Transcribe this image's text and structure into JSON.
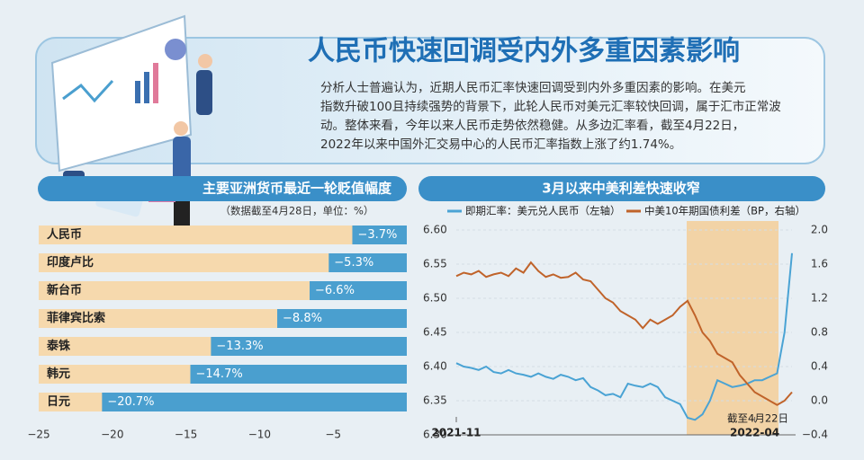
{
  "header": {
    "title": "人民币快速回调受内外多重因素影响",
    "lines": [
      "分析人士普遍认为，近期人民币汇率快速回调受到内外多重因素的影响。在美元",
      "指数升破100且持续强势的背景下，此轮人民币对美元汇率较快回调，属于汇市正常波",
      "动。整体来看，今年以来人民币走势依然稳健。从多边汇率看，截至4月22日，",
      "2022年以来中国外汇交易中心的人民币汇率指数上涨了约1.74%。"
    ]
  },
  "chart_data": [
    {
      "type": "hbar",
      "title": "主要亚洲货币最近一轮贬值幅度",
      "subtitle": "（数据截至4月28日，单位：%）",
      "categories": [
        "人民币",
        "印度卢比",
        "新台币",
        "菲律宾比索",
        "泰铢",
        "韩元",
        "日元"
      ],
      "values": [
        -3.7,
        -5.3,
        -6.6,
        -8.8,
        -13.3,
        -14.7,
        -20.7
      ],
      "value_labels": [
        "−3.7%",
        "−5.3%",
        "−6.6%",
        "−8.8%",
        "−13.3%",
        "−14.7%",
        "−20.7%"
      ],
      "color": "#4a9fcf",
      "track_color": "#f6d9ad",
      "xlim": [
        -25,
        0
      ],
      "xticks": [
        {
          "value": -25,
          "label": "−25"
        },
        {
          "value": -20,
          "label": "−20"
        },
        {
          "value": -15,
          "label": "−15"
        },
        {
          "value": -10,
          "label": "−10"
        },
        {
          "value": -5,
          "label": "−5"
        }
      ]
    },
    {
      "type": "line",
      "title": "3月以来中美利差快速收窄",
      "annotation": "截至4月22日",
      "categories": [
        "2021-11",
        null,
        null,
        null,
        null,
        null,
        null,
        null,
        null,
        null,
        null,
        null,
        null,
        null,
        null,
        null,
        null,
        null,
        null,
        null,
        null,
        null,
        null,
        null,
        null,
        null,
        null,
        null,
        null,
        null,
        null,
        null,
        null,
        null,
        null,
        null,
        null,
        null,
        null,
        null,
        "2022-04",
        null,
        null,
        null,
        null,
        null
      ],
      "series": [
        {
          "name": "即期汇率：美元兑人民币（左轴）",
          "color": "#4aa3d4",
          "values": [
            6.405,
            6.4,
            6.398,
            6.395,
            6.4,
            6.392,
            6.39,
            6.395,
            6.39,
            6.388,
            6.385,
            6.39,
            6.385,
            6.382,
            6.388,
            6.385,
            6.38,
            6.383,
            6.37,
            6.365,
            6.358,
            6.36,
            6.355,
            6.375,
            6.372,
            6.37,
            6.375,
            6.37,
            6.355,
            6.35,
            6.345,
            6.325,
            6.322,
            6.33,
            6.35,
            6.38,
            6.375,
            6.37,
            6.372,
            6.375,
            6.38,
            6.38,
            6.385,
            6.39,
            6.45,
            6.566
          ]
        },
        {
          "name": "中美10年期国债利差（BP，右轴）",
          "color": "#c0632a",
          "axis": "y2",
          "values": [
            1.46,
            1.5,
            1.48,
            1.52,
            1.45,
            1.48,
            1.5,
            1.46,
            1.55,
            1.5,
            1.62,
            1.52,
            1.45,
            1.48,
            1.44,
            1.45,
            1.5,
            1.42,
            1.4,
            1.3,
            1.2,
            1.15,
            1.05,
            1.0,
            0.95,
            0.85,
            0.95,
            0.9,
            0.95,
            1.0,
            1.1,
            1.17,
            1.0,
            0.8,
            0.7,
            0.55,
            0.5,
            0.45,
            0.3,
            0.2,
            0.1,
            0.05,
            0.0,
            -0.05,
            0.0,
            0.1
          ]
        }
      ],
      "ylim": [
        6.3,
        6.6
      ],
      "yticks": [
        {
          "value": 6.3,
          "label": "6.30"
        },
        6.35,
        {
          "value": 6.4,
          "label": "6.40"
        },
        6.45,
        {
          "value": 6.5,
          "label": "6.50"
        },
        6.55,
        {
          "value": 6.6,
          "label": "6.60"
        }
      ],
      "y2lim": [
        -0.4,
        2.0
      ],
      "y2ticks": [
        {
          "value": -0.4,
          "label": "−0.4"
        },
        {
          "value": 0.0,
          "label": "0.0"
        },
        0.4,
        0.8,
        1.2,
        1.6,
        {
          "value": 2.0,
          "label": "2.0"
        }
      ],
      "grid": true
    }
  ]
}
